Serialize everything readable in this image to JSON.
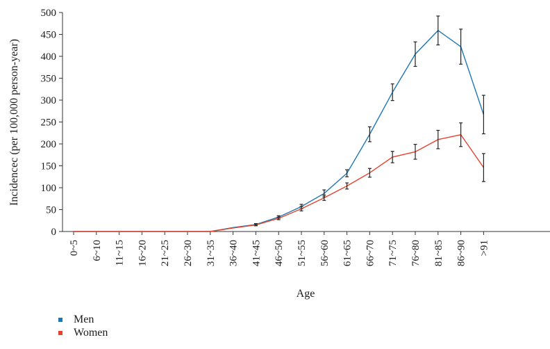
{
  "chart_data": {
    "type": "line",
    "xlabel": "Age",
    "ylabel": "Incidencec (per 100,000 person-year)",
    "ylim": [
      0,
      500
    ],
    "yticks": [
      0,
      50,
      100,
      150,
      200,
      250,
      300,
      350,
      400,
      450,
      500
    ],
    "categories": [
      "0~5",
      "6~10",
      "11~15",
      "16~20",
      "21~25",
      "26~30",
      "31~35",
      "36~40",
      "41~45",
      "46~50",
      "51~55",
      "56~60",
      "61~65",
      "66~70",
      "71~75",
      "76~80",
      "81~85",
      "86~90",
      ">91"
    ],
    "legend_position": "bottom-left",
    "series": [
      {
        "name": "Men",
        "color": "#1f77b4",
        "values": [
          0,
          0,
          0,
          0,
          0,
          0,
          0,
          9,
          16,
          33,
          57,
          87,
          133,
          222,
          318,
          405,
          459,
          422,
          267
        ],
        "error": [
          0,
          0,
          0,
          0,
          0,
          0,
          0,
          0,
          2,
          3,
          5,
          8,
          8,
          17,
          19,
          28,
          33,
          40,
          44
        ]
      },
      {
        "name": "Women",
        "color": "#e8412c",
        "values": [
          0,
          0,
          0,
          0,
          0,
          0,
          0,
          8,
          15,
          30,
          52,
          77,
          104,
          134,
          170,
          182,
          210,
          221,
          146
        ],
        "error": [
          0,
          0,
          0,
          0,
          0,
          0,
          0,
          0,
          2,
          3,
          5,
          6,
          7,
          10,
          13,
          17,
          21,
          27,
          32
        ]
      }
    ]
  }
}
